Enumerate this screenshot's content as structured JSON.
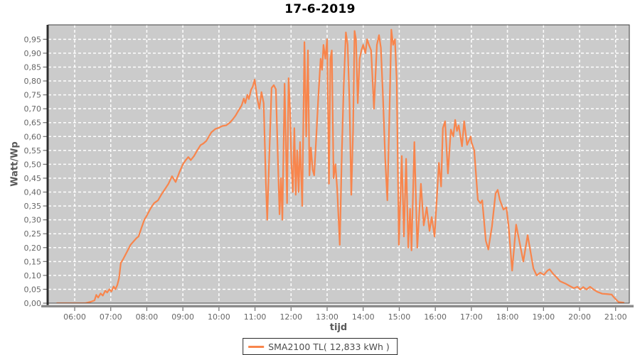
{
  "chart_data": {
    "type": "line",
    "title": "17-6-2019",
    "xlabel": "tijd",
    "ylabel": "Watt/Wp",
    "grid": true,
    "legend_position": "bottom-center",
    "colors": {
      "line": "#f8854c",
      "plot_background": "#cbcbcb",
      "gridline": "#ffffff",
      "tick_label": "#666666",
      "axis_bar_left": "#2e2e2e",
      "axis_bar_bottom": "#8c8c8c"
    },
    "x_range_hours": [
      5.27,
      21.38
    ],
    "y_range": [
      0,
      1.002
    ],
    "x_ticks": {
      "values": [
        6,
        7,
        8,
        9,
        10,
        11,
        12,
        13,
        14,
        15,
        16,
        17,
        18,
        19,
        20,
        21
      ],
      "labels": [
        "06:00",
        "07:00",
        "08:00",
        "09:00",
        "10:00",
        "11:00",
        "12:00",
        "13:00",
        "14:00",
        "15:00",
        "16:00",
        "17:00",
        "18:00",
        "19:00",
        "20:00",
        "21:00"
      ]
    },
    "y_ticks": {
      "values": [
        0,
        0.05,
        0.1,
        0.15,
        0.2,
        0.25,
        0.3,
        0.35,
        0.4,
        0.45,
        0.5,
        0.55,
        0.6,
        0.65,
        0.7,
        0.75,
        0.8,
        0.85,
        0.9,
        0.95
      ],
      "labels": [
        "0,00",
        "0,05",
        "0,10",
        "0,15",
        "0,20",
        "0,25",
        "0,30",
        "0,35",
        "0,40",
        "0,45",
        "0,50",
        "0,55",
        "0,60",
        "0,65",
        "0,70",
        "0,75",
        "0,80",
        "0,85",
        "0,90",
        "0,95"
      ]
    },
    "series": [
      {
        "name": "SMA2100 TL( 12,833 kWh )",
        "color": "#f8854c",
        "points": [
          [
            5.51,
            0
          ],
          [
            5.8,
            0
          ],
          [
            6.1,
            0
          ],
          [
            6.3,
            0
          ],
          [
            6.45,
            0.005
          ],
          [
            6.55,
            0.01
          ],
          [
            6.6,
            0.03
          ],
          [
            6.65,
            0.02
          ],
          [
            6.72,
            0.035
          ],
          [
            6.78,
            0.027
          ],
          [
            6.85,
            0.045
          ],
          [
            6.9,
            0.038
          ],
          [
            6.96,
            0.05
          ],
          [
            7.02,
            0.042
          ],
          [
            7.08,
            0.06
          ],
          [
            7.13,
            0.05
          ],
          [
            7.18,
            0.065
          ],
          [
            7.23,
            0.09
          ],
          [
            7.28,
            0.145
          ],
          [
            7.35,
            0.16
          ],
          [
            7.45,
            0.185
          ],
          [
            7.55,
            0.21
          ],
          [
            7.65,
            0.225
          ],
          [
            7.72,
            0.235
          ],
          [
            7.77,
            0.24
          ],
          [
            7.85,
            0.27
          ],
          [
            7.93,
            0.3
          ],
          [
            8.0,
            0.315
          ],
          [
            8.1,
            0.34
          ],
          [
            8.2,
            0.36
          ],
          [
            8.31,
            0.37
          ],
          [
            8.4,
            0.39
          ],
          [
            8.5,
            0.41
          ],
          [
            8.6,
            0.43
          ],
          [
            8.7,
            0.457
          ],
          [
            8.8,
            0.436
          ],
          [
            8.9,
            0.47
          ],
          [
            9.0,
            0.5
          ],
          [
            9.08,
            0.515
          ],
          [
            9.15,
            0.526
          ],
          [
            9.22,
            0.515
          ],
          [
            9.31,
            0.53
          ],
          [
            9.4,
            0.55
          ],
          [
            9.49,
            0.569
          ],
          [
            9.57,
            0.575
          ],
          [
            9.65,
            0.584
          ],
          [
            9.72,
            0.6
          ],
          [
            9.79,
            0.615
          ],
          [
            9.9,
            0.627
          ],
          [
            10.0,
            0.632
          ],
          [
            10.1,
            0.638
          ],
          [
            10.2,
            0.64
          ],
          [
            10.3,
            0.65
          ],
          [
            10.38,
            0.661
          ],
          [
            10.46,
            0.675
          ],
          [
            10.53,
            0.691
          ],
          [
            10.63,
            0.712
          ],
          [
            10.69,
            0.737
          ],
          [
            10.73,
            0.72
          ],
          [
            10.79,
            0.75
          ],
          [
            10.83,
            0.735
          ],
          [
            10.89,
            0.768
          ],
          [
            10.94,
            0.78
          ],
          [
            10.99,
            0.805
          ],
          [
            11.06,
            0.74
          ],
          [
            11.12,
            0.7
          ],
          [
            11.18,
            0.76
          ],
          [
            11.24,
            0.72
          ],
          [
            11.3,
            0.44
          ],
          [
            11.34,
            0.3
          ],
          [
            11.4,
            0.55
          ],
          [
            11.46,
            0.775
          ],
          [
            11.52,
            0.785
          ],
          [
            11.58,
            0.77
          ],
          [
            11.64,
            0.5
          ],
          [
            11.68,
            0.32
          ],
          [
            11.72,
            0.45
          ],
          [
            11.76,
            0.3
          ],
          [
            11.82,
            0.79
          ],
          [
            11.86,
            0.55
          ],
          [
            11.89,
            0.36
          ],
          [
            11.93,
            0.81
          ],
          [
            11.97,
            0.7
          ],
          [
            12.01,
            0.5
          ],
          [
            12.05,
            0.4
          ],
          [
            12.09,
            0.63
          ],
          [
            12.13,
            0.39
          ],
          [
            12.17,
            0.55
          ],
          [
            12.21,
            0.4
          ],
          [
            12.25,
            0.58
          ],
          [
            12.31,
            0.35
          ],
          [
            12.37,
            0.94
          ],
          [
            12.42,
            0.6
          ],
          [
            12.47,
            0.91
          ],
          [
            12.51,
            0.46
          ],
          [
            12.55,
            0.56
          ],
          [
            12.6,
            0.48
          ],
          [
            12.64,
            0.46
          ],
          [
            12.7,
            0.6
          ],
          [
            12.76,
            0.75
          ],
          [
            12.82,
            0.88
          ],
          [
            12.86,
            0.84
          ],
          [
            12.9,
            0.93
          ],
          [
            12.95,
            0.88
          ],
          [
            13.0,
            0.95
          ],
          [
            13.05,
            0.43
          ],
          [
            13.09,
            0.88
          ],
          [
            13.13,
            0.91
          ],
          [
            13.18,
            0.45
          ],
          [
            13.23,
            0.5
          ],
          [
            13.28,
            0.41
          ],
          [
            13.35,
            0.21
          ],
          [
            13.41,
            0.55
          ],
          [
            13.46,
            0.78
          ],
          [
            13.52,
            0.975
          ],
          [
            13.57,
            0.93
          ],
          [
            13.62,
            0.72
          ],
          [
            13.67,
            0.39
          ],
          [
            13.72,
            0.62
          ],
          [
            13.76,
            0.98
          ],
          [
            13.8,
            0.95
          ],
          [
            13.85,
            0.72
          ],
          [
            13.9,
            0.88
          ],
          [
            13.95,
            0.91
          ],
          [
            14.0,
            0.93
          ],
          [
            14.06,
            0.9
          ],
          [
            14.11,
            0.95
          ],
          [
            14.16,
            0.93
          ],
          [
            14.22,
            0.91
          ],
          [
            14.3,
            0.7
          ],
          [
            14.38,
            0.93
          ],
          [
            14.44,
            0.965
          ],
          [
            14.49,
            0.92
          ],
          [
            14.55,
            0.74
          ],
          [
            14.61,
            0.52
          ],
          [
            14.67,
            0.37
          ],
          [
            14.73,
            0.7
          ],
          [
            14.78,
            0.985
          ],
          [
            14.83,
            0.93
          ],
          [
            14.88,
            0.95
          ],
          [
            14.93,
            0.8
          ],
          [
            14.99,
            0.21
          ],
          [
            15.07,
            0.53
          ],
          [
            15.13,
            0.24
          ],
          [
            15.19,
            0.52
          ],
          [
            15.25,
            0.2
          ],
          [
            15.3,
            0.34
          ],
          [
            15.34,
            0.19
          ],
          [
            15.42,
            0.58
          ],
          [
            15.5,
            0.2
          ],
          [
            15.6,
            0.43
          ],
          [
            15.68,
            0.28
          ],
          [
            15.76,
            0.345
          ],
          [
            15.84,
            0.26
          ],
          [
            15.9,
            0.31
          ],
          [
            15.98,
            0.24
          ],
          [
            16.1,
            0.505
          ],
          [
            16.16,
            0.42
          ],
          [
            16.21,
            0.63
          ],
          [
            16.27,
            0.655
          ],
          [
            16.35,
            0.467
          ],
          [
            16.43,
            0.625
          ],
          [
            16.5,
            0.6
          ],
          [
            16.55,
            0.66
          ],
          [
            16.6,
            0.62
          ],
          [
            16.65,
            0.64
          ],
          [
            16.74,
            0.565
          ],
          [
            16.8,
            0.655
          ],
          [
            16.88,
            0.57
          ],
          [
            16.98,
            0.6
          ],
          [
            17.0,
            0.58
          ],
          [
            17.08,
            0.55
          ],
          [
            17.18,
            0.372
          ],
          [
            17.25,
            0.36
          ],
          [
            17.3,
            0.37
          ],
          [
            17.4,
            0.225
          ],
          [
            17.47,
            0.193
          ],
          [
            17.57,
            0.276
          ],
          [
            17.67,
            0.395
          ],
          [
            17.73,
            0.408
          ],
          [
            17.79,
            0.372
          ],
          [
            17.89,
            0.337
          ],
          [
            17.97,
            0.345
          ],
          [
            18.03,
            0.281
          ],
          [
            18.13,
            0.117
          ],
          [
            18.24,
            0.283
          ],
          [
            18.44,
            0.15
          ],
          [
            18.56,
            0.245
          ],
          [
            18.72,
            0.125
          ],
          [
            18.81,
            0.1
          ],
          [
            18.91,
            0.11
          ],
          [
            19.01,
            0.102
          ],
          [
            19.11,
            0.117
          ],
          [
            19.17,
            0.122
          ],
          [
            19.27,
            0.105
          ],
          [
            19.37,
            0.092
          ],
          [
            19.46,
            0.079
          ],
          [
            19.6,
            0.071
          ],
          [
            19.74,
            0.061
          ],
          [
            19.84,
            0.054
          ],
          [
            19.94,
            0.059
          ],
          [
            20.02,
            0.049
          ],
          [
            20.1,
            0.058
          ],
          [
            20.19,
            0.049
          ],
          [
            20.29,
            0.059
          ],
          [
            20.39,
            0.049
          ],
          [
            20.49,
            0.041
          ],
          [
            20.63,
            0.034
          ],
          [
            20.75,
            0.033
          ],
          [
            20.89,
            0.031
          ],
          [
            20.94,
            0.023
          ],
          [
            21.02,
            0.012
          ],
          [
            21.08,
            0.004
          ],
          [
            21.22,
            0.002
          ]
        ]
      }
    ]
  }
}
